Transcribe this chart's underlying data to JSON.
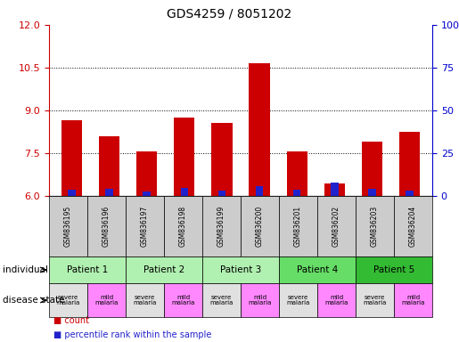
{
  "title": "GDS4259 / 8051202",
  "samples": [
    "GSM836195",
    "GSM836196",
    "GSM836197",
    "GSM836198",
    "GSM836199",
    "GSM836200",
    "GSM836201",
    "GSM836202",
    "GSM836203",
    "GSM836204"
  ],
  "count_values": [
    8.65,
    8.1,
    7.55,
    8.75,
    8.55,
    10.65,
    7.55,
    6.45,
    7.9,
    8.25
  ],
  "percentile_bar_heights_pct": [
    3.5,
    4.0,
    2.5,
    4.5,
    3.0,
    5.5,
    3.5,
    8.0,
    4.0,
    3.0
  ],
  "ylim_left": [
    6,
    12
  ],
  "ylim_right": [
    0,
    100
  ],
  "yticks_left": [
    6,
    7.5,
    9,
    10.5,
    12
  ],
  "yticks_right": [
    0,
    25,
    50,
    75,
    100
  ],
  "patients": [
    {
      "label": "Patient 1",
      "cols": [
        0,
        1
      ],
      "color": "#b0f0b0"
    },
    {
      "label": "Patient 2",
      "cols": [
        2,
        3
      ],
      "color": "#b0f0b0"
    },
    {
      "label": "Patient 3",
      "cols": [
        4,
        5
      ],
      "color": "#b0f0b0"
    },
    {
      "label": "Patient 4",
      "cols": [
        6,
        7
      ],
      "color": "#66dd66"
    },
    {
      "label": "Patient 5",
      "cols": [
        8,
        9
      ],
      "color": "#33bb33"
    }
  ],
  "disease_states": [
    {
      "label": "severe\nmalaria",
      "col": 0,
      "color": "#e0e0e0"
    },
    {
      "label": "mild\nmalaria",
      "col": 1,
      "color": "#ff88ff"
    },
    {
      "label": "severe\nmalaria",
      "col": 2,
      "color": "#e0e0e0"
    },
    {
      "label": "mild\nmalaria",
      "col": 3,
      "color": "#ff88ff"
    },
    {
      "label": "severe\nmalaria",
      "col": 4,
      "color": "#e0e0e0"
    },
    {
      "label": "mild\nmalaria",
      "col": 5,
      "color": "#ff88ff"
    },
    {
      "label": "severe\nmalaria",
      "col": 6,
      "color": "#e0e0e0"
    },
    {
      "label": "mild\nmalaria",
      "col": 7,
      "color": "#ff88ff"
    },
    {
      "label": "severe\nmalaria",
      "col": 8,
      "color": "#e0e0e0"
    },
    {
      "label": "mild\nmalaria",
      "col": 9,
      "color": "#ff88ff"
    }
  ],
  "bar_color_red": "#cc0000",
  "bar_color_blue": "#2222cc",
  "bar_width": 0.55,
  "blue_bar_width": 0.2,
  "grid_color": "black",
  "left_axis_color": "#cc0000",
  "right_axis_color": "#0000cc",
  "sample_box_color": "#cccccc",
  "individual_label": "individual",
  "disease_state_label": "disease state",
  "legend_count": "count",
  "legend_percentile": "percentile rank within the sample",
  "title_fontsize": 10,
  "tick_fontsize": 8,
  "sample_fontsize": 5.5,
  "patient_fontsize": 7.5,
  "disease_fontsize": 5,
  "label_fontsize": 7.5,
  "legend_fontsize": 7
}
